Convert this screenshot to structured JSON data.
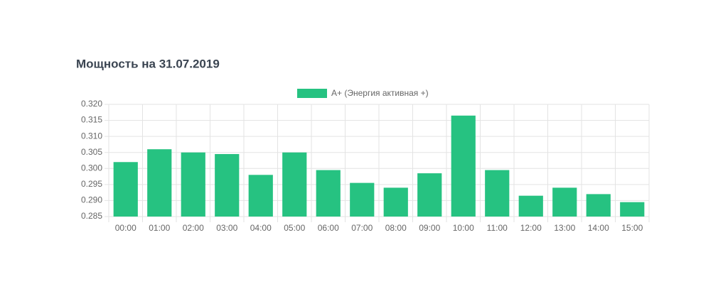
{
  "chart_data": {
    "type": "bar",
    "title": "Мощность на 31.07.2019",
    "categories": [
      "00:00",
      "01:00",
      "02:00",
      "03:00",
      "04:00",
      "05:00",
      "06:00",
      "07:00",
      "08:00",
      "09:00",
      "10:00",
      "11:00",
      "12:00",
      "13:00",
      "14:00",
      "15:00"
    ],
    "series": [
      {
        "name": "A+ (Энергия активная +)",
        "color": "#26c281",
        "values": [
          0.302,
          0.306,
          0.305,
          0.3045,
          0.298,
          0.305,
          0.2995,
          0.2955,
          0.294,
          0.2985,
          0.3165,
          0.2995,
          0.2915,
          0.294,
          0.292,
          0.2895
        ]
      }
    ],
    "ylim": [
      0.285,
      0.32
    ],
    "yticks": [
      0.285,
      {
        "value": 0.29,
        "label": "0.290"
      },
      0.295,
      {
        "value": 0.3,
        "label": "0.300"
      },
      0.305,
      {
        "value": 0.31,
        "label": "0.310"
      },
      0.315,
      {
        "value": 0.32,
        "label": "0.320"
      }
    ],
    "grid": true,
    "legend": "top"
  }
}
